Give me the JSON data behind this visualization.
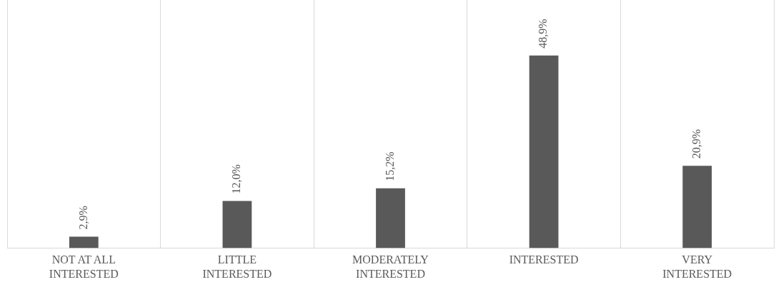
{
  "chart_data": {
    "type": "bar",
    "categories": [
      "NOT AT ALL INTERESTED",
      "LITTLE INTERESTED",
      "MODERATELY INTERESTED",
      "INTERESTED",
      "VERY INTERESTED"
    ],
    "values": [
      2.9,
      12.0,
      15.2,
      48.9,
      20.9
    ],
    "value_labels": [
      "2,9%",
      "12,0%",
      "15,2%",
      "48,9%",
      "20,9%"
    ],
    "color": "#595959",
    "ylim": [
      0,
      63
    ],
    "grid": "x",
    "legend": false
  }
}
